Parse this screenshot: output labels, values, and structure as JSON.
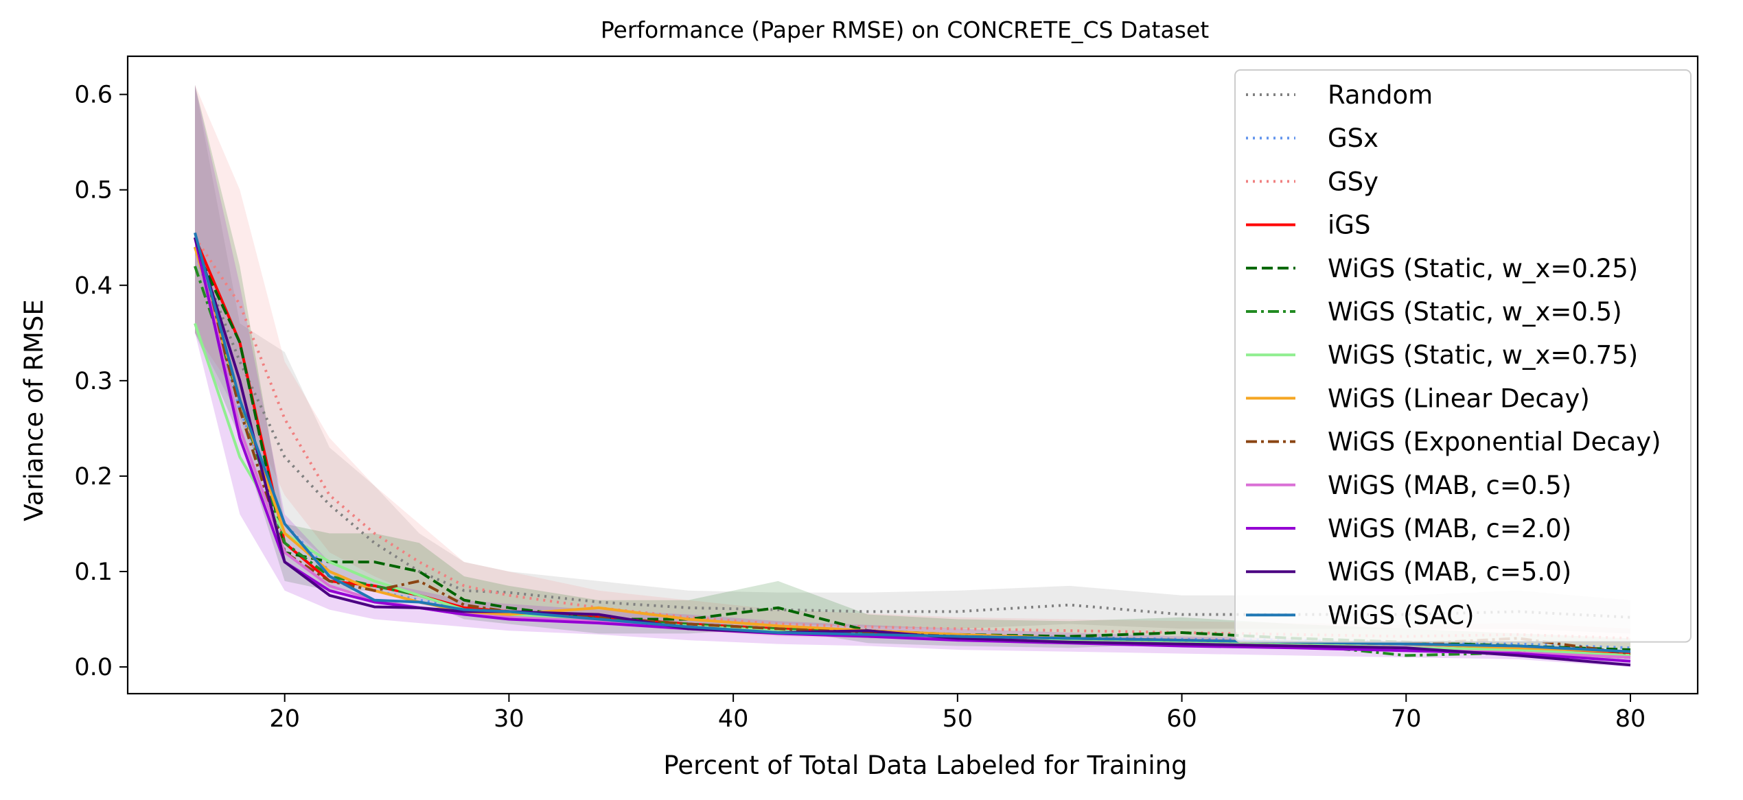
{
  "chart_data": {
    "type": "line",
    "title": "Performance (Paper RMSE) on CONCRETE_CS Dataset",
    "xlabel": "Percent of Total Data Labeled for Training",
    "ylabel": "Variance of RMSE",
    "xlim": [
      13,
      83
    ],
    "ylim": [
      -0.028,
      0.64
    ],
    "xticks": [
      20,
      30,
      40,
      50,
      60,
      70,
      80
    ],
    "yticks": [
      0.0,
      0.1,
      0.2,
      0.3,
      0.4,
      0.5,
      0.6
    ],
    "xtick_labels": [
      "20",
      "30",
      "40",
      "50",
      "60",
      "70",
      "80"
    ],
    "ytick_labels": [
      "0.0",
      "0.1",
      "0.2",
      "0.3",
      "0.4",
      "0.5",
      "0.6"
    ],
    "grid": false,
    "legend_position": "upper-right",
    "x": [
      16,
      18,
      20,
      22,
      24,
      26,
      28,
      30,
      34,
      38,
      42,
      46,
      50,
      55,
      60,
      65,
      70,
      75,
      80
    ],
    "series": [
      {
        "name": "Random",
        "color": "#808080",
        "style": "dotted",
        "values": [
          0.44,
          0.32,
          0.22,
          0.17,
          0.13,
          0.1,
          0.08,
          0.078,
          0.068,
          0.062,
          0.06,
          0.058,
          0.058,
          0.065,
          0.055,
          0.055,
          0.055,
          0.058,
          0.052
        ]
      },
      {
        "name": "GSx",
        "color": "#6495ED",
        "style": "dotted",
        "values": [
          0.44,
          0.27,
          0.15,
          0.1,
          0.08,
          0.07,
          0.062,
          0.055,
          0.05,
          0.045,
          0.04,
          0.036,
          0.033,
          0.031,
          0.029,
          0.028,
          0.026,
          0.024,
          0.02
        ]
      },
      {
        "name": "GSy",
        "color": "#F08080",
        "style": "dotted",
        "values": [
          0.45,
          0.38,
          0.26,
          0.18,
          0.14,
          0.11,
          0.085,
          0.075,
          0.062,
          0.052,
          0.045,
          0.042,
          0.04,
          0.038,
          0.036,
          0.034,
          0.032,
          0.034,
          0.03
        ]
      },
      {
        "name": "iGS",
        "color": "#FF0000",
        "style": "solid",
        "values": [
          0.45,
          0.34,
          0.13,
          0.09,
          0.085,
          0.075,
          0.062,
          0.058,
          0.052,
          0.045,
          0.04,
          0.036,
          0.032,
          0.03,
          0.028,
          0.026,
          0.024,
          0.02,
          0.015
        ]
      },
      {
        "name": "WiGS (Static, w_x=0.25)",
        "color": "#006400",
        "style": "dashed",
        "values": [
          0.44,
          0.34,
          0.12,
          0.11,
          0.11,
          0.1,
          0.07,
          0.062,
          0.05,
          0.05,
          0.062,
          0.038,
          0.034,
          0.032,
          0.036,
          0.03,
          0.026,
          0.022,
          0.018
        ]
      },
      {
        "name": "WiGS (Static, w_x=0.5)",
        "color": "#228B22",
        "style": "dashdot",
        "values": [
          0.42,
          0.28,
          0.13,
          0.095,
          0.085,
          0.075,
          0.06,
          0.058,
          0.05,
          0.045,
          0.04,
          0.036,
          0.032,
          0.03,
          0.028,
          0.024,
          0.012,
          0.015,
          0.01
        ]
      },
      {
        "name": "WiGS (Static, w_x=0.75)",
        "color": "#90EE90",
        "style": "solid",
        "values": [
          0.36,
          0.22,
          0.14,
          0.11,
          0.09,
          0.075,
          0.06,
          0.055,
          0.048,
          0.043,
          0.038,
          0.034,
          0.03,
          0.028,
          0.026,
          0.024,
          0.02,
          0.018,
          0.012
        ]
      },
      {
        "name": "WiGS (Linear Decay)",
        "color": "#F5A623",
        "style": "solid",
        "values": [
          0.44,
          0.28,
          0.14,
          0.1,
          0.08,
          0.068,
          0.058,
          0.055,
          0.062,
          0.05,
          0.043,
          0.038,
          0.034,
          0.03,
          0.028,
          0.026,
          0.024,
          0.02,
          0.016
        ]
      },
      {
        "name": "WiGS (Exponential Decay)",
        "color": "#8B4513",
        "style": "dashdot",
        "values": [
          0.45,
          0.27,
          0.12,
          0.09,
          0.08,
          0.09,
          0.065,
          0.058,
          0.052,
          0.045,
          0.04,
          0.036,
          0.032,
          0.03,
          0.028,
          0.026,
          0.024,
          0.03,
          0.014
        ]
      },
      {
        "name": "WiGS (MAB, c=0.5)",
        "color": "#DA70D6",
        "style": "solid",
        "values": [
          0.45,
          0.25,
          0.12,
          0.085,
          0.07,
          0.062,
          0.055,
          0.052,
          0.048,
          0.042,
          0.036,
          0.032,
          0.03,
          0.026,
          0.024,
          0.022,
          0.018,
          0.015,
          0.01
        ]
      },
      {
        "name": "WiGS (MAB, c=2.0)",
        "color": "#9400D3",
        "style": "solid",
        "values": [
          0.45,
          0.24,
          0.11,
          0.08,
          0.068,
          0.062,
          0.055,
          0.05,
          0.046,
          0.04,
          0.035,
          0.032,
          0.028,
          0.025,
          0.022,
          0.02,
          0.017,
          0.014,
          0.006
        ]
      },
      {
        "name": "WiGS (MAB, c=5.0)",
        "color": "#4B0082",
        "style": "solid",
        "values": [
          0.45,
          0.3,
          0.11,
          0.075,
          0.063,
          0.062,
          0.058,
          0.058,
          0.055,
          0.04,
          0.036,
          0.038,
          0.03,
          0.026,
          0.024,
          0.022,
          0.02,
          0.012,
          0.002
        ]
      },
      {
        "name": "WiGS (SAC)",
        "color": "#1F77B4",
        "style": "solid",
        "values": [
          0.455,
          0.28,
          0.15,
          0.095,
          0.07,
          0.068,
          0.06,
          0.058,
          0.05,
          0.042,
          0.036,
          0.034,
          0.032,
          0.03,
          0.028,
          0.026,
          0.024,
          0.022,
          0.016
        ]
      }
    ],
    "bands": [
      {
        "series": "Random",
        "upper": [
          0.61,
          0.36,
          0.33,
          0.23,
          0.19,
          0.14,
          0.11,
          0.1,
          0.09,
          0.08,
          0.078,
          0.078,
          0.08,
          0.085,
          0.075,
          0.075,
          0.075,
          0.08,
          0.07
        ],
        "lower": [
          0.35,
          0.26,
          0.15,
          0.11,
          0.09,
          0.075,
          0.06,
          0.058,
          0.05,
          0.045,
          0.045,
          0.042,
          0.04,
          0.045,
          0.04,
          0.04,
          0.04,
          0.04,
          0.035
        ]
      },
      {
        "series": "GSy",
        "upper": [
          0.61,
          0.5,
          0.32,
          0.24,
          0.19,
          0.15,
          0.11,
          0.1,
          0.08,
          0.07,
          0.06,
          0.056,
          0.052,
          0.05,
          0.048,
          0.046,
          0.044,
          0.046,
          0.04
        ],
        "lower": [
          0.35,
          0.28,
          0.18,
          0.12,
          0.095,
          0.075,
          0.06,
          0.05,
          0.045,
          0.038,
          0.032,
          0.03,
          0.028,
          0.026,
          0.025,
          0.023,
          0.021,
          0.022,
          0.02
        ]
      },
      {
        "series": "WiGS (Static, w_x=0.25)",
        "upper": [
          0.61,
          0.42,
          0.15,
          0.14,
          0.14,
          0.13,
          0.095,
          0.085,
          0.07,
          0.07,
          0.09,
          0.055,
          0.05,
          0.048,
          0.052,
          0.045,
          0.04,
          0.035,
          0.03
        ],
        "lower": [
          0.35,
          0.24,
          0.09,
          0.08,
          0.08,
          0.07,
          0.05,
          0.045,
          0.035,
          0.035,
          0.04,
          0.025,
          0.022,
          0.02,
          0.024,
          0.02,
          0.016,
          0.012,
          0.008
        ]
      },
      {
        "series": "WiGS (MAB, c=2.0)",
        "upper": [
          0.61,
          0.4,
          0.16,
          0.11,
          0.09,
          0.08,
          0.07,
          0.066,
          0.06,
          0.055,
          0.048,
          0.044,
          0.04,
          0.036,
          0.032,
          0.03,
          0.026,
          0.022,
          0.015
        ],
        "lower": [
          0.35,
          0.16,
          0.08,
          0.06,
          0.05,
          0.046,
          0.042,
          0.038,
          0.034,
          0.028,
          0.024,
          0.022,
          0.018,
          0.016,
          0.014,
          0.012,
          0.01,
          0.008,
          0.0
        ]
      }
    ]
  }
}
